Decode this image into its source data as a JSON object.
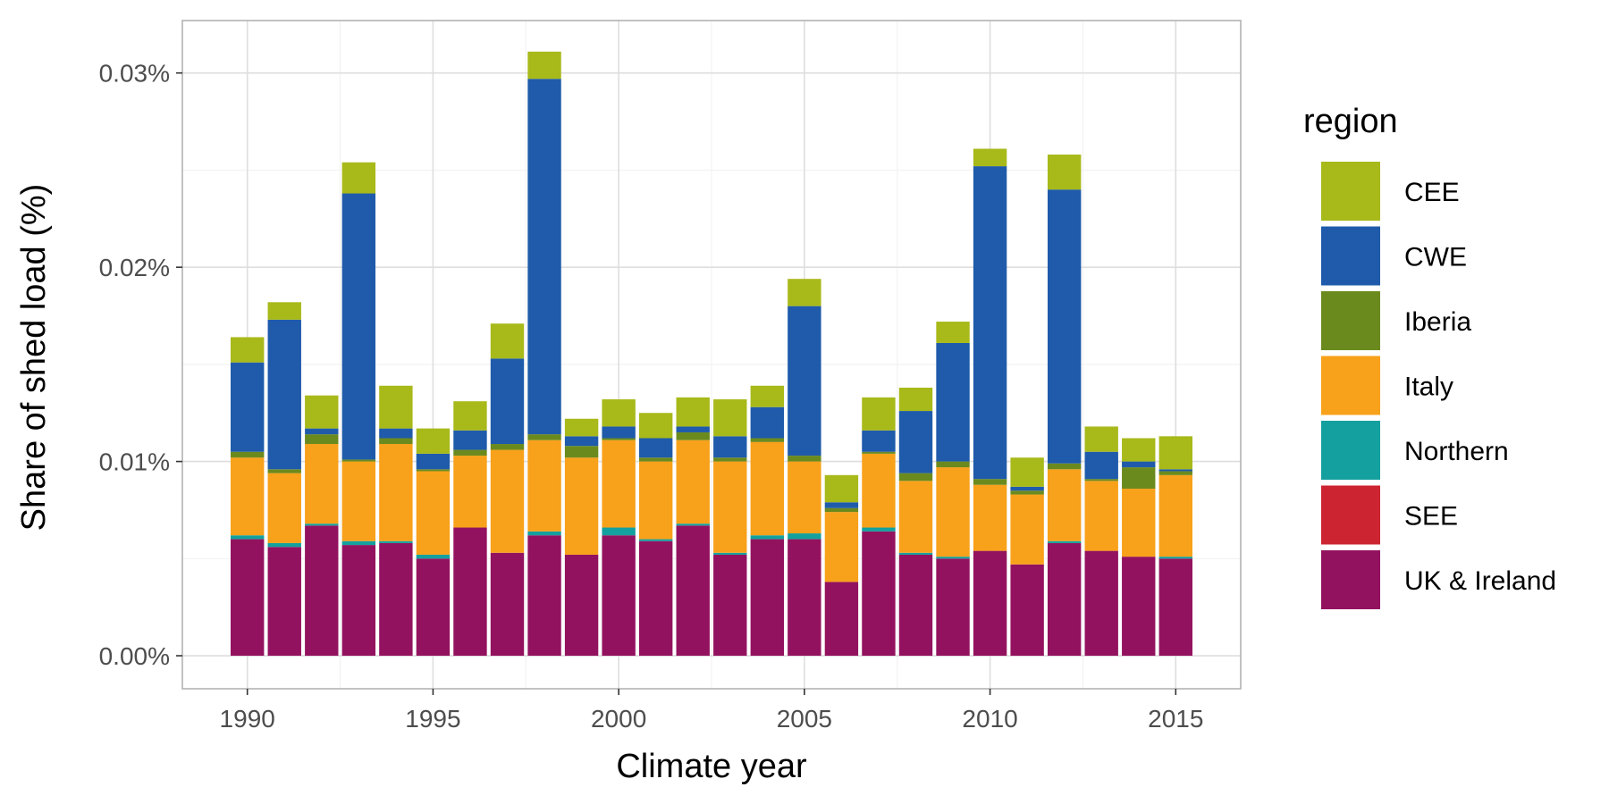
{
  "chart_data": {
    "type": "bar",
    "stacked": true,
    "title": "",
    "xlabel": "Climate year",
    "ylabel": "Share of shed load (%)",
    "x": [
      1990,
      1991,
      1992,
      1993,
      1994,
      1995,
      1996,
      1997,
      1998,
      1999,
      2000,
      2001,
      2002,
      2003,
      2004,
      2005,
      2006,
      2007,
      2008,
      2009,
      2010,
      2011,
      2012,
      2013,
      2014,
      2015
    ],
    "xlim": [
      1988.25,
      2016.75
    ],
    "ylim": [
      -0.0017,
      0.0327
    ],
    "x_ticks": [
      1990,
      1995,
      2000,
      2005,
      2010,
      2015
    ],
    "x_tick_labels": [
      "1990",
      "1995",
      "2000",
      "2005",
      "2010",
      "2015"
    ],
    "y_ticks": [
      0,
      0.01,
      0.02,
      0.03
    ],
    "y_tick_labels": [
      "0.00%",
      "0.01%",
      "0.02%",
      "0.03%"
    ],
    "grid": true,
    "legend": {
      "title": "region",
      "position": "right"
    },
    "series": [
      {
        "name": "UK & Ireland",
        "color": "#93125F",
        "values": [
          0.006,
          0.0056,
          0.0067,
          0.0057,
          0.0058,
          0.005,
          0.0066,
          0.0053,
          0.0062,
          0.0052,
          0.0062,
          0.0059,
          0.0067,
          0.0052,
          0.006,
          0.006,
          0.0038,
          0.0064,
          0.0052,
          0.005,
          0.0054,
          0.0047,
          0.0058,
          0.0054,
          0.0051,
          0.005
        ]
      },
      {
        "name": "SEE",
        "color": "#CC2531",
        "values": [
          0,
          0,
          0,
          0,
          0,
          0,
          0,
          0,
          0,
          0,
          0,
          0,
          0,
          0,
          0,
          0,
          0,
          0,
          0,
          0,
          0,
          0,
          0,
          0,
          0,
          0
        ]
      },
      {
        "name": "Northern",
        "color": "#14A09E",
        "values": [
          0.0002,
          0.0002,
          0.0001,
          0.0002,
          0.0001,
          0.0002,
          0,
          0,
          0.0002,
          0,
          0.0004,
          0.0001,
          0.0001,
          0.0001,
          0.0002,
          0.0003,
          0,
          0.0002,
          0.0001,
          0.0001,
          0,
          0,
          0.0001,
          0,
          0,
          0.0001
        ]
      },
      {
        "name": "Italy",
        "color": "#F8A11A",
        "values": [
          0.004,
          0.0036,
          0.0041,
          0.0041,
          0.005,
          0.0043,
          0.0037,
          0.0053,
          0.0047,
          0.005,
          0.0045,
          0.004,
          0.0043,
          0.0047,
          0.0048,
          0.0037,
          0.0036,
          0.0038,
          0.0037,
          0.0046,
          0.0034,
          0.0036,
          0.0037,
          0.0036,
          0.0035,
          0.0042
        ]
      },
      {
        "name": "Iberia",
        "color": "#6B8A1E",
        "values": [
          0.0003,
          0.0002,
          0.0005,
          0.0001,
          0.0003,
          0.0001,
          0.0003,
          0.0003,
          0.0003,
          0.0006,
          0.0001,
          0.0002,
          0.0004,
          0.0002,
          0.0002,
          0.0003,
          0.0002,
          0.0001,
          0.0004,
          0.0003,
          0.0003,
          0.0002,
          0.0003,
          0.0001,
          0.0011,
          0.0002
        ]
      },
      {
        "name": "CWE",
        "color": "#1F5BAA",
        "values": [
          0.0046,
          0.0077,
          0.0003,
          0.0137,
          0.0005,
          0.0008,
          0.001,
          0.0044,
          0.0183,
          0.0005,
          0.0006,
          0.001,
          0.0003,
          0.0011,
          0.0016,
          0.0077,
          0.0003,
          0.0011,
          0.0032,
          0.0061,
          0.0161,
          0.0002,
          0.0141,
          0.0014,
          0.0003,
          0.0001
        ]
      },
      {
        "name": "CEE",
        "color": "#A8B91A",
        "values": [
          0.0013,
          0.0009,
          0.0017,
          0.0016,
          0.0022,
          0.0013,
          0.0015,
          0.0018,
          0.0014,
          0.0009,
          0.0014,
          0.0013,
          0.0015,
          0.0019,
          0.0011,
          0.0014,
          0.0014,
          0.0017,
          0.0012,
          0.0011,
          0.0009,
          0.0015,
          0.0018,
          0.0013,
          0.0012,
          0.0017
        ]
      }
    ],
    "legend_order": [
      "CEE",
      "CWE",
      "Iberia",
      "Italy",
      "Northern",
      "SEE",
      "UK & Ireland"
    ]
  }
}
